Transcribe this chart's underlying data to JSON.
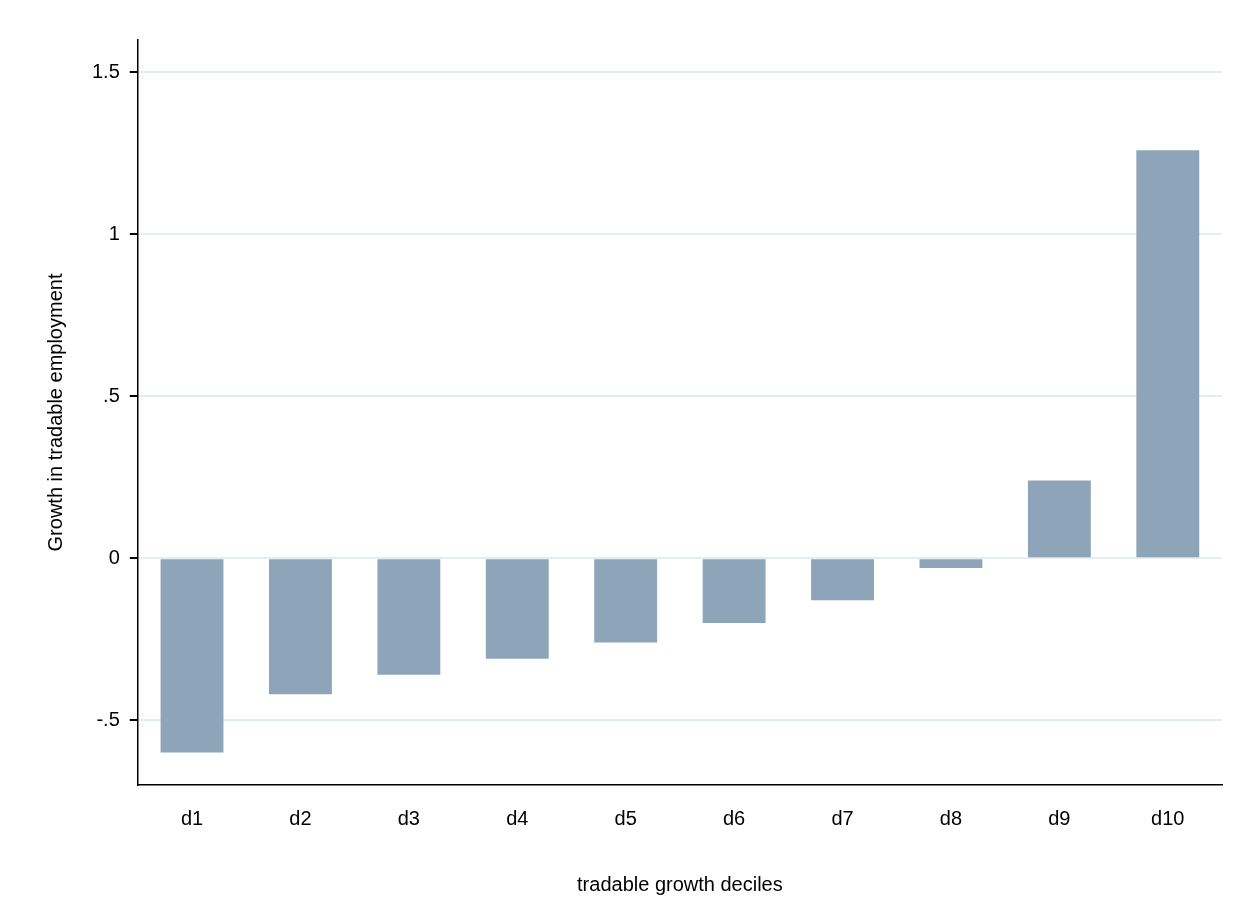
{
  "chart_data": {
    "type": "bar",
    "xlabel": "tradable growth deciles",
    "ylabel": "Growth in tradable employment",
    "categories": [
      "d1",
      "d2",
      "d3",
      "d4",
      "d5",
      "d6",
      "d7",
      "d8",
      "d9",
      "d10"
    ],
    "series": [
      {
        "color": "#8da4b9",
        "values": [
          -0.6,
          -0.42,
          -0.36,
          -0.31,
          -0.26,
          -0.2,
          -0.13,
          -0.03,
          0.24,
          1.26
        ]
      }
    ],
    "ylim": [
      -0.7,
      1.6
    ],
    "yticks": [
      {
        "value": -0.5,
        "label": "-.5"
      },
      0,
      {
        "value": 0.5,
        "label": ".5"
      },
      1,
      1.5
    ],
    "grid": "y",
    "legend": false
  }
}
